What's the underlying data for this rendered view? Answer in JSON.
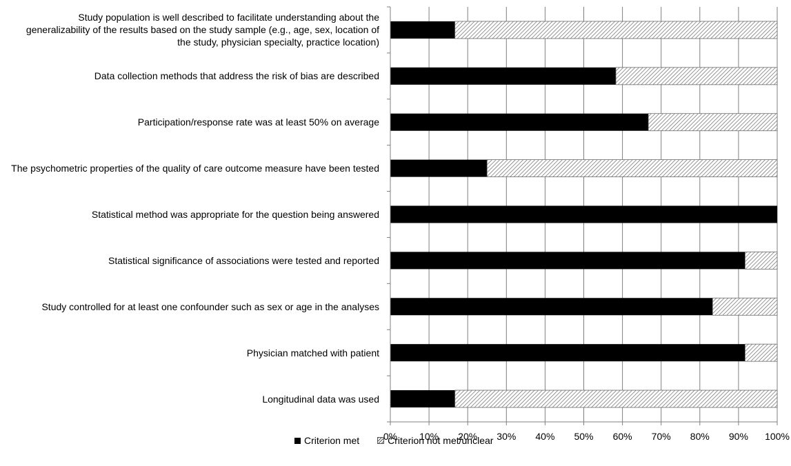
{
  "chart_data": {
    "type": "bar",
    "orientation": "horizontal",
    "stacked": true,
    "percent": true,
    "categories": [
      "Study population is well described to facilitate understanding about the generalizability of the results based on the study sample (e.g., age, sex, location of the study, physician specialty, practice location)",
      "Data collection methods that address the risk of bias are described",
      "Participation/response rate was at least 50% on average",
      "The psychometric properties of the quality of care outcome measure have been tested",
      "Statistical method was appropriate for the question being answered",
      "Statistical significance of associations were tested and reported",
      "Study controlled for at least one confounder such as sex or age in the analyses",
      "Physician matched with patient",
      "Longitudinal data was used"
    ],
    "series": [
      {
        "name": "Criterion met",
        "color": "#000000",
        "pattern": "solid",
        "values": [
          16.7,
          58.3,
          66.7,
          25.0,
          100.0,
          91.7,
          83.3,
          91.7,
          16.7
        ]
      },
      {
        "name": "Criterion not met/unclear",
        "color": "#555555",
        "pattern": "diagonal-hatch",
        "values": [
          83.3,
          41.7,
          33.3,
          75.0,
          0.0,
          8.3,
          16.7,
          8.3,
          83.3
        ]
      }
    ],
    "xticks": [
      "0%",
      "10%",
      "20%",
      "30%",
      "40%",
      "50%",
      "60%",
      "70%",
      "80%",
      "90%",
      "100%"
    ],
    "xlim": [
      0,
      100
    ],
    "grid": true,
    "legend_position": "bottom"
  }
}
